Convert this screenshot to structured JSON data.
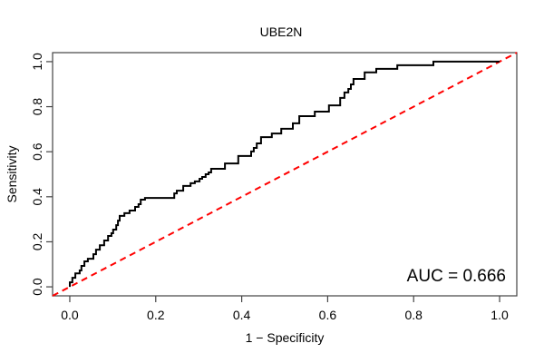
{
  "chart_data": {
    "type": "line",
    "subtype": "roc-step-curve",
    "title": "UBE2N",
    "xlabel": "1 − Specificity",
    "ylabel": "Sensitivity",
    "auc_label": "AUC = 0.666",
    "auc_value": 0.666,
    "xlim": [
      -0.04,
      1.04
    ],
    "ylim": [
      -0.04,
      1.04
    ],
    "x_ticks": [
      0.0,
      0.2,
      0.4,
      0.6,
      0.8,
      1.0
    ],
    "y_ticks": [
      0.0,
      0.2,
      0.4,
      0.6,
      0.8,
      1.0
    ],
    "grid": false,
    "legend_position": "none",
    "colors": {
      "curve": "#000000",
      "reference_line": "#FF0000",
      "box": "#444444",
      "background": "#FFFFFF"
    },
    "series": [
      {
        "name": "ROC curve",
        "step_mode": "hv",
        "points": [
          [
            0.0,
            0.0
          ],
          [
            0.0,
            0.02
          ],
          [
            0.006,
            0.04
          ],
          [
            0.013,
            0.06
          ],
          [
            0.023,
            0.073
          ],
          [
            0.027,
            0.093
          ],
          [
            0.034,
            0.113
          ],
          [
            0.042,
            0.125
          ],
          [
            0.055,
            0.145
          ],
          [
            0.061,
            0.165
          ],
          [
            0.07,
            0.185
          ],
          [
            0.08,
            0.206
          ],
          [
            0.089,
            0.226
          ],
          [
            0.097,
            0.238
          ],
          [
            0.101,
            0.254
          ],
          [
            0.108,
            0.274
          ],
          [
            0.112,
            0.294
          ],
          [
            0.116,
            0.315
          ],
          [
            0.127,
            0.327
          ],
          [
            0.139,
            0.339
          ],
          [
            0.152,
            0.355
          ],
          [
            0.16,
            0.367
          ],
          [
            0.165,
            0.387
          ],
          [
            0.175,
            0.395
          ],
          [
            0.243,
            0.415
          ],
          [
            0.249,
            0.427
          ],
          [
            0.264,
            0.448
          ],
          [
            0.281,
            0.46
          ],
          [
            0.291,
            0.468
          ],
          [
            0.302,
            0.48
          ],
          [
            0.308,
            0.488
          ],
          [
            0.316,
            0.5
          ],
          [
            0.323,
            0.508
          ],
          [
            0.329,
            0.524
          ],
          [
            0.361,
            0.548
          ],
          [
            0.392,
            0.581
          ],
          [
            0.422,
            0.601
          ],
          [
            0.428,
            0.617
          ],
          [
            0.435,
            0.637
          ],
          [
            0.445,
            0.665
          ],
          [
            0.47,
            0.681
          ],
          [
            0.492,
            0.702
          ],
          [
            0.519,
            0.726
          ],
          [
            0.534,
            0.758
          ],
          [
            0.57,
            0.778
          ],
          [
            0.603,
            0.806
          ],
          [
            0.629,
            0.839
          ],
          [
            0.639,
            0.863
          ],
          [
            0.648,
            0.879
          ],
          [
            0.654,
            0.899
          ],
          [
            0.66,
            0.923
          ],
          [
            0.686,
            0.952
          ],
          [
            0.713,
            0.968
          ],
          [
            0.762,
            0.984
          ],
          [
            0.846,
            1.0
          ],
          [
            1.0,
            1.0
          ]
        ]
      },
      {
        "name": "chance reference diagonal",
        "step_mode": "straight",
        "dashed": true,
        "points": [
          [
            -0.04,
            -0.04
          ],
          [
            1.04,
            1.04
          ]
        ]
      }
    ]
  }
}
